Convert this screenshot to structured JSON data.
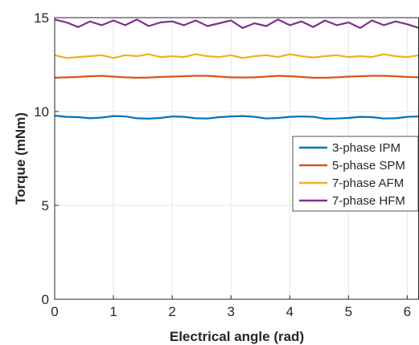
{
  "chart_data": {
    "type": "line",
    "title": "",
    "xlabel": "Electrical angle (rad)",
    "ylabel": "Torque (mNm)",
    "xlim": [
      0,
      6.2
    ],
    "ylim": [
      0,
      15
    ],
    "xticks": [
      "0",
      "1",
      "2",
      "3",
      "4",
      "5",
      "6"
    ],
    "xtick_values": [
      0,
      1,
      2,
      3,
      4,
      5,
      6
    ],
    "yticks": [
      "0",
      "5",
      "10",
      "15"
    ],
    "ytick_values": [
      0,
      5,
      10,
      15
    ],
    "grid": true,
    "legend_position": "right",
    "x": [
      0,
      0.2,
      0.4,
      0.6,
      0.8,
      1.0,
      1.2,
      1.4,
      1.6,
      1.8,
      2.0,
      2.2,
      2.4,
      2.6,
      2.8,
      3.0,
      3.2,
      3.4,
      3.6,
      3.8,
      4.0,
      4.2,
      4.4,
      4.6,
      4.8,
      5.0,
      5.2,
      5.4,
      5.6,
      5.8,
      6.0,
      6.2
    ],
    "series": [
      {
        "name": "3-phase IPM",
        "color": "#0072BD",
        "values": [
          9.78,
          9.72,
          9.7,
          9.64,
          9.68,
          9.76,
          9.74,
          9.64,
          9.62,
          9.66,
          9.74,
          9.72,
          9.64,
          9.63,
          9.7,
          9.74,
          9.76,
          9.72,
          9.63,
          9.66,
          9.72,
          9.74,
          9.72,
          9.62,
          9.63,
          9.66,
          9.72,
          9.7,
          9.63,
          9.64,
          9.72,
          9.74
        ]
      },
      {
        "name": "5-phase SPM",
        "color": "#D95319",
        "values": [
          11.8,
          11.82,
          11.84,
          11.88,
          11.9,
          11.86,
          11.82,
          11.8,
          11.81,
          11.84,
          11.86,
          11.88,
          11.9,
          11.9,
          11.86,
          11.82,
          11.81,
          11.82,
          11.86,
          11.9,
          11.88,
          11.84,
          11.8,
          11.8,
          11.82,
          11.86,
          11.88,
          11.9,
          11.9,
          11.88,
          11.84,
          11.82
        ]
      },
      {
        "name": "7-phase AFM",
        "color": "#EDB120",
        "values": [
          13.0,
          12.85,
          12.9,
          12.95,
          13.0,
          12.85,
          13.0,
          12.95,
          13.05,
          12.9,
          12.95,
          12.9,
          13.05,
          12.95,
          12.9,
          13.0,
          12.85,
          12.95,
          13.0,
          12.9,
          13.05,
          12.95,
          12.88,
          12.95,
          13.0,
          12.9,
          12.95,
          12.9,
          13.05,
          12.95,
          12.9,
          13.0
        ]
      },
      {
        "name": "7-phase HFM",
        "color": "#7E2F8E",
        "values": [
          14.9,
          14.75,
          14.5,
          14.8,
          14.6,
          14.85,
          14.6,
          14.9,
          14.55,
          14.75,
          14.8,
          14.6,
          14.85,
          14.55,
          14.7,
          14.85,
          14.45,
          14.7,
          14.55,
          14.9,
          14.6,
          14.8,
          14.5,
          14.85,
          14.6,
          14.75,
          14.45,
          14.85,
          14.6,
          14.8,
          14.65,
          14.45
        ]
      }
    ]
  }
}
